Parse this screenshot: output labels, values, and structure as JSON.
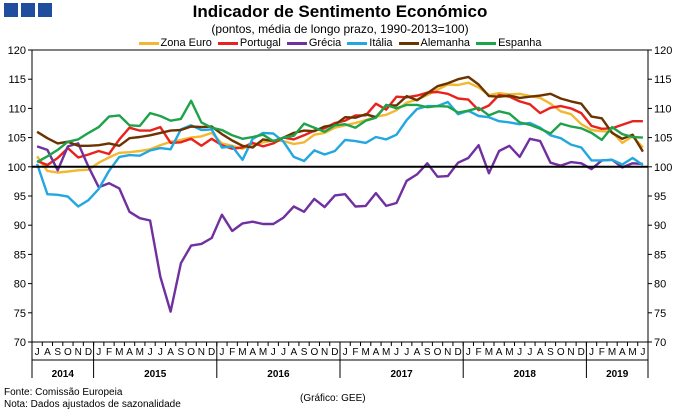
{
  "header": {
    "title": "Indicador de Sentimento Económico",
    "subtitle": "(pontos, média de longo prazo, 1990-2013=100)"
  },
  "colors": {
    "brand_squares": "#1f4e9e"
  },
  "footer": {
    "source": "Fonte: Comissão Europeia",
    "note": "Nota: Dados ajustados de sazonalidade",
    "credit": "(Gráfico: GEE)"
  },
  "chart_data": {
    "type": "line",
    "title": "Indicador de Sentimento Económico",
    "subtitle": "(pontos, média de longo prazo, 1990-2013=100)",
    "xlabel": "",
    "ylabel": "",
    "ylim": [
      70,
      120
    ],
    "yticks": [
      70,
      75,
      80,
      85,
      90,
      95,
      100,
      105,
      110,
      115,
      120
    ],
    "reference_line": 100,
    "grid": false,
    "legend_position": "top",
    "x_month_labels": [
      "J",
      "A",
      "S",
      "O",
      "N",
      "D",
      "J",
      "F",
      "M",
      "A",
      "M",
      "J",
      "J",
      "A",
      "S",
      "O",
      "N",
      "D",
      "J",
      "F",
      "M",
      "A",
      "M",
      "J",
      "J",
      "A",
      "S",
      "O",
      "N",
      "D",
      "J",
      "F",
      "M",
      "A",
      "M",
      "J",
      "J",
      "A",
      "S",
      "O",
      "N",
      "D",
      "J",
      "F",
      "M",
      "A",
      "M",
      "J",
      "J",
      "A",
      "S",
      "O",
      "N",
      "D",
      "J",
      "F",
      "M",
      "A",
      "M",
      "J"
    ],
    "year_groups": [
      {
        "label": "2014",
        "months": 6
      },
      {
        "label": "2015",
        "months": 12
      },
      {
        "label": "2016",
        "months": 12
      },
      {
        "label": "2017",
        "months": 12
      },
      {
        "label": "2018",
        "months": 12
      },
      {
        "label": "2019",
        "months": 6
      }
    ],
    "series": [
      {
        "name": "Zona Euro",
        "color": "#f2b830",
        "values": [
          101.8,
          99.3,
          99.0,
          99.2,
          99.4,
          99.5,
          100.7,
          101.6,
          102.4,
          102.5,
          102.7,
          103.0,
          103.7,
          104.3,
          104.6,
          105.0,
          105.2,
          105.8,
          104.0,
          103.6,
          103.1,
          103.8,
          104.2,
          104.5,
          104.4,
          103.9,
          104.2,
          105.5,
          105.8,
          106.7,
          107.1,
          107.5,
          108.0,
          108.6,
          108.9,
          109.7,
          111.0,
          111.5,
          112.3,
          113.2,
          114.1,
          114.0,
          114.4,
          113.6,
          112.3,
          112.6,
          112.4,
          112.5,
          112.1,
          111.8,
          110.8,
          109.5,
          109.0,
          107.3,
          106.3,
          106.1,
          106.0,
          104.1,
          105.2,
          103.3
        ]
      },
      {
        "name": "Portugal",
        "color": "#e8221c",
        "values": [
          101.0,
          100.3,
          101.5,
          103.2,
          101.6,
          102.1,
          102.7,
          102.2,
          104.7,
          106.7,
          106.2,
          106.2,
          106.8,
          104.1,
          104.2,
          104.8,
          103.6,
          104.8,
          103.7,
          103.1,
          103.3,
          104.1,
          103.5,
          104.0,
          105.0,
          104.7,
          105.4,
          106.2,
          106.6,
          107.5,
          107.9,
          108.8,
          108.8,
          110.8,
          109.8,
          112.0,
          111.9,
          112.2,
          112.7,
          112.8,
          112.5,
          111.7,
          111.5,
          109.7,
          110.5,
          112.3,
          112.0,
          111.2,
          110.7,
          109.2,
          110.1,
          110.4,
          110.0,
          109.2,
          107.0,
          106.5,
          106.6,
          107.2,
          107.8,
          107.8
        ]
      },
      {
        "name": "Grécia",
        "color": "#7030a0",
        "values": [
          103.5,
          102.9,
          99.4,
          103.5,
          104.0,
          100.0,
          96.5,
          97.2,
          96.3,
          92.3,
          91.2,
          90.8,
          81.2,
          75.2,
          83.5,
          86.5,
          86.8,
          87.8,
          91.8,
          89.0,
          90.3,
          90.6,
          90.2,
          90.2,
          91.3,
          93.2,
          92.3,
          94.5,
          93.1,
          95.1,
          95.3,
          93.2,
          93.3,
          95.5,
          93.3,
          93.8,
          97.6,
          98.7,
          100.6,
          98.3,
          98.4,
          100.7,
          101.5,
          103.7,
          98.9,
          102.7,
          103.6,
          101.7,
          104.8,
          104.4,
          100.7,
          100.2,
          100.8,
          100.6,
          99.6,
          101.1,
          101.2,
          99.9,
          100.6,
          100.5
        ]
      },
      {
        "name": "Itália",
        "color": "#22a7e0",
        "values": [
          100.5,
          95.3,
          95.2,
          94.9,
          93.2,
          94.3,
          96.2,
          99.3,
          101.7,
          102.0,
          101.9,
          102.8,
          103.2,
          103.0,
          106.4,
          107.1,
          106.3,
          106.4,
          103.3,
          103.5,
          101.2,
          104.8,
          105.8,
          105.7,
          104.3,
          101.7,
          101.0,
          102.8,
          102.1,
          102.7,
          104.6,
          104.4,
          104.1,
          105.1,
          104.7,
          105.5,
          108.0,
          109.9,
          110.4,
          110.4,
          111.1,
          109.0,
          109.6,
          108.7,
          108.5,
          107.8,
          107.6,
          107.3,
          107.5,
          106.7,
          105.4,
          104.9,
          103.8,
          103.3,
          101.1,
          101.1,
          101.2,
          100.4,
          101.5,
          100.3
        ]
      },
      {
        "name": "Alemanha",
        "color": "#6b3300",
        "values": [
          106.0,
          104.9,
          104.0,
          104.3,
          103.6,
          103.6,
          103.7,
          104.0,
          103.6,
          104.9,
          105.1,
          105.4,
          105.8,
          106.2,
          106.3,
          106.9,
          106.8,
          106.9,
          105.6,
          104.5,
          103.6,
          103.3,
          104.7,
          104.4,
          105.0,
          105.8,
          106.2,
          106.1,
          106.9,
          107.2,
          108.5,
          108.4,
          109.0,
          108.5,
          110.5,
          110.5,
          112.1,
          111.4,
          112.6,
          113.8,
          114.3,
          115.0,
          115.4,
          114.1,
          112.1,
          112.0,
          112.2,
          111.8,
          112.0,
          112.2,
          112.5,
          111.7,
          111.2,
          110.8,
          108.6,
          108.3,
          105.8,
          104.8,
          105.5,
          102.6
        ]
      },
      {
        "name": "Espanha",
        "color": "#1fa34a",
        "values": [
          100.8,
          101.8,
          102.9,
          104.3,
          104.7,
          105.8,
          106.8,
          108.6,
          108.8,
          107.1,
          107.0,
          109.2,
          108.7,
          107.9,
          108.2,
          111.3,
          107.6,
          106.7,
          106.3,
          105.4,
          104.8,
          105.1,
          105.5,
          104.4,
          105.0,
          105.3,
          107.4,
          106.7,
          106.0,
          107.1,
          107.3,
          106.7,
          107.9,
          108.4,
          110.6,
          110.0,
          110.6,
          110.6,
          110.2,
          110.4,
          110.3,
          109.3,
          109.6,
          110.1,
          108.8,
          109.5,
          109.1,
          107.6,
          107.2,
          106.5,
          105.7,
          107.4,
          106.9,
          106.6,
          105.8,
          104.6,
          106.8,
          105.6,
          105.1,
          105.0
        ]
      }
    ]
  }
}
